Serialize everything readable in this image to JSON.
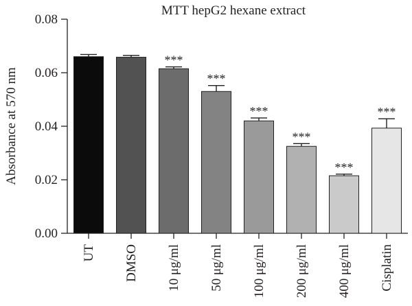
{
  "chart_data": {
    "type": "bar",
    "title": "MTT hepG2 hexane extract",
    "xlabel": "",
    "ylabel": "Absorbance at 570 nm",
    "ylim": [
      0,
      0.08
    ],
    "yticks": [
      "0.00",
      "0.02",
      "0.04",
      "0.06",
      "0.08"
    ],
    "ytick_values": [
      0,
      0.02,
      0.04,
      0.06,
      0.08
    ],
    "categories": [
      "UT",
      "DMSO",
      "10 μg/ml",
      "50 μg/ml",
      "100 μg/ml",
      "200 μg/ml",
      "400 μg/ml",
      "Cisplatin"
    ],
    "values": [
      0.066,
      0.0658,
      0.0615,
      0.053,
      0.042,
      0.0325,
      0.0215,
      0.0393
    ],
    "errors": [
      0.0008,
      0.0007,
      0.0007,
      0.0022,
      0.0011,
      0.001,
      0.0006,
      0.0035
    ],
    "annotations": [
      "",
      "",
      "***",
      "***",
      "***",
      "***",
      "***",
      "***"
    ],
    "bar_colors": [
      "#0b0b0c",
      "#525253",
      "#6c6c6d",
      "#838384",
      "#9a9a9b",
      "#b1b1b2",
      "#cacacb",
      "#e6e6e7"
    ]
  }
}
